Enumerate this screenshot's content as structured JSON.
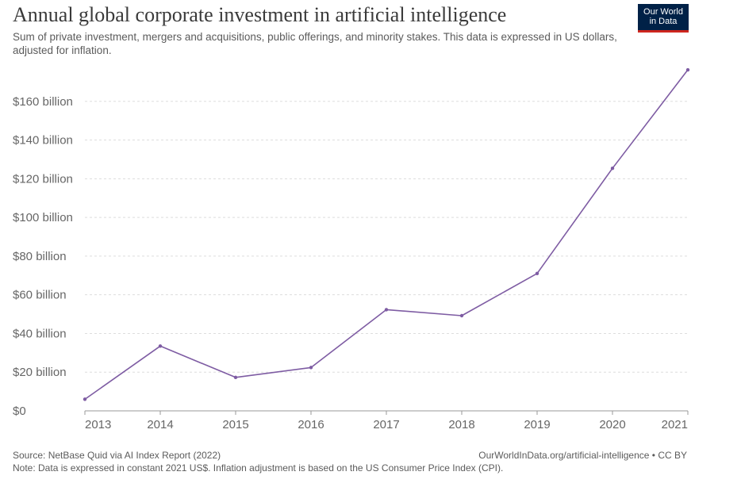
{
  "header": {
    "title": "Annual global corporate investment in artificial intelligence",
    "subtitle": "Sum of private investment, mergers and acquisitions, public offerings, and minority stakes. This data is expressed in US dollars, adjusted for inflation.",
    "logo_line1": "Our World",
    "logo_line2": "in Data"
  },
  "footer": {
    "source": "Source: NetBase Quid via AI Index Report (2022)",
    "credit": "OurWorldInData.org/artificial-intelligence • CC BY",
    "note": "Note: Data is expressed in constant 2021 US$. Inflation adjustment is based on the US Consumer Price Index (CPI)."
  },
  "colors": {
    "line": "#7e5ca3",
    "logo_bg": "#002147",
    "logo_accent": "#ce261e"
  },
  "chart_data": {
    "type": "line",
    "title": "Annual global corporate investment in artificial intelligence",
    "xlabel": "",
    "ylabel": "",
    "x": [
      2013,
      2014,
      2015,
      2016,
      2017,
      2018,
      2019,
      2020,
      2021
    ],
    "series": [
      {
        "values": [
          6,
          33.5,
          17.3,
          22.4,
          52.3,
          49.2,
          71,
          125.4,
          176.3
        ]
      }
    ],
    "ylim": [
      0,
      180
    ],
    "yticks": [
      0,
      20,
      40,
      60,
      80,
      100,
      120,
      140,
      160
    ],
    "ytick_labels": [
      "$0",
      "$20 billion",
      "$40 billion",
      "$60 billion",
      "$80 billion",
      "$100 billion",
      "$120 billion",
      "$140 billion",
      "$160 billion"
    ],
    "xticks": [
      "2013",
      "2014",
      "2015",
      "2016",
      "2017",
      "2018",
      "2019",
      "2020",
      "2021"
    ],
    "grid": true
  }
}
